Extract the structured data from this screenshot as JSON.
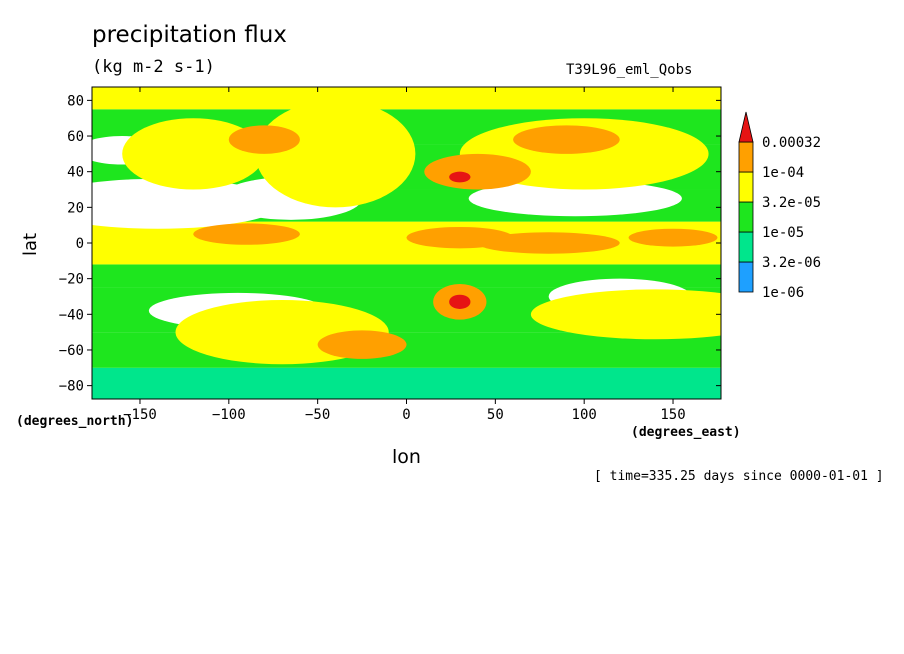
{
  "chart_data": {
    "type": "heatmap",
    "title": "precipitation flux",
    "units": "(kg m-2 s-1)",
    "run_label": "T39L96_eml_Qobs",
    "xlabel": "lon",
    "ylabel": "lat",
    "x_units": "(degrees_east)",
    "y_units": "(degrees_north)",
    "timestamp": "[ time=335.25 days since 0000-01-01 ]",
    "xlim": [
      -177,
      177
    ],
    "ylim": [
      -87.5,
      87.5
    ],
    "x_ticks": [
      -150,
      -100,
      -50,
      0,
      50,
      100,
      150
    ],
    "y_ticks": [
      -80,
      -60,
      -40,
      -20,
      0,
      20,
      40,
      60,
      80
    ],
    "x_tick_labels": [
      "−150",
      "−100",
      "−50",
      "0",
      "50",
      "100",
      "150"
    ],
    "y_tick_labels": [
      "−80",
      "−60",
      "−40",
      "−20",
      "0",
      "20",
      "40",
      "60",
      "80"
    ],
    "colorbar": {
      "labels": [
        "0.00032",
        "1e-04",
        "3.2e-05",
        "1e-05",
        "3.2e-06",
        "1e-06"
      ],
      "bins": [
        {
          "color": "#1ea0ff",
          "from": "1e-06",
          "to": "3.2e-06"
        },
        {
          "color": "#00e68c",
          "from": "3.2e-06",
          "to": "1e-05"
        },
        {
          "color": "#1ee61e",
          "from": "1e-05",
          "to": "3.2e-05"
        },
        {
          "color": "#ffff00",
          "from": "3.2e-05",
          "to": "1e-04"
        },
        {
          "color": "#ffa000",
          "from": "1e-04",
          "to": "0.00032"
        },
        {
          "color": "#e61414",
          "from": "0.00032",
          "to": "max"
        }
      ]
    },
    "field_bands": [
      {
        "lat": [
          -87.5,
          -70
        ],
        "color": "#00e68c"
      },
      {
        "lat": [
          -70,
          -50
        ],
        "color": "#1ee61e"
      },
      {
        "lat": [
          -50,
          -25
        ],
        "color": "#1ee61e"
      },
      {
        "lat": [
          -25,
          -12
        ],
        "color": "#1ee61e"
      },
      {
        "lat": [
          -12,
          12
        ],
        "color": "#ffff00"
      },
      {
        "lat": [
          12,
          30
        ],
        "color": "#1ee61e"
      },
      {
        "lat": [
          30,
          55
        ],
        "color": "#1ee61e"
      },
      {
        "lat": [
          55,
          75
        ],
        "color": "#1ee61e"
      },
      {
        "lat": [
          75,
          87.5
        ],
        "color": "#ffff00"
      }
    ],
    "features": [
      {
        "kind": "dry",
        "lon": -140,
        "lat": 22,
        "w": 70,
        "h": 14,
        "color": "#ffffff"
      },
      {
        "kind": "dry",
        "lon": -65,
        "lat": 25,
        "w": 40,
        "h": 12,
        "color": "#ffffff"
      },
      {
        "kind": "dry",
        "lon": 95,
        "lat": 25,
        "w": 60,
        "h": 10,
        "color": "#ffffff"
      },
      {
        "kind": "dry",
        "lon": -95,
        "lat": -38,
        "w": 50,
        "h": 10,
        "color": "#ffffff"
      },
      {
        "kind": "dry",
        "lon": 120,
        "lat": -30,
        "w": 40,
        "h": 10,
        "color": "#ffffff"
      },
      {
        "kind": "dry",
        "lon": -160,
        "lat": 52,
        "w": 25,
        "h": 8,
        "color": "#ffffff"
      },
      {
        "kind": "moist",
        "lon": -120,
        "lat": 50,
        "w": 40,
        "h": 20,
        "color": "#ffff00"
      },
      {
        "kind": "moist",
        "lon": -40,
        "lat": 50,
        "w": 45,
        "h": 30,
        "color": "#ffff00"
      },
      {
        "kind": "moist",
        "lon": 100,
        "lat": 50,
        "w": 70,
        "h": 20,
        "color": "#ffff00"
      },
      {
        "kind": "moist",
        "lon": -70,
        "lat": -50,
        "w": 60,
        "h": 18,
        "color": "#ffff00"
      },
      {
        "kind": "moist",
        "lon": 140,
        "lat": -40,
        "w": 70,
        "h": 14,
        "color": "#ffff00"
      },
      {
        "kind": "wet",
        "lon": -90,
        "lat": 5,
        "w": 30,
        "h": 6,
        "color": "#ffa000"
      },
      {
        "kind": "wet",
        "lon": 30,
        "lat": 3,
        "w": 30,
        "h": 6,
        "color": "#ffa000"
      },
      {
        "kind": "wet",
        "lon": 80,
        "lat": 0,
        "w": 40,
        "h": 6,
        "color": "#ffa000"
      },
      {
        "kind": "wet",
        "lon": 150,
        "lat": 3,
        "w": 25,
        "h": 5,
        "color": "#ffa000"
      },
      {
        "kind": "wet",
        "lon": 40,
        "lat": 40,
        "w": 30,
        "h": 10,
        "color": "#ffa000"
      },
      {
        "kind": "wet",
        "lon": -80,
        "lat": 58,
        "w": 20,
        "h": 8,
        "color": "#ffa000"
      },
      {
        "kind": "wet",
        "lon": 90,
        "lat": 58,
        "w": 30,
        "h": 8,
        "color": "#ffa000"
      },
      {
        "kind": "wet",
        "lon": 30,
        "lat": -33,
        "w": 15,
        "h": 10,
        "color": "#ffa000"
      },
      {
        "kind": "wet",
        "lon": -25,
        "lat": -57,
        "w": 25,
        "h": 8,
        "color": "#ffa000"
      },
      {
        "kind": "max",
        "lon": 30,
        "lat": 37,
        "w": 6,
        "h": 3,
        "color": "#e61414"
      },
      {
        "kind": "max",
        "lon": 30,
        "lat": -33,
        "w": 6,
        "h": 4,
        "color": "#e61414"
      }
    ],
    "grid": false
  }
}
